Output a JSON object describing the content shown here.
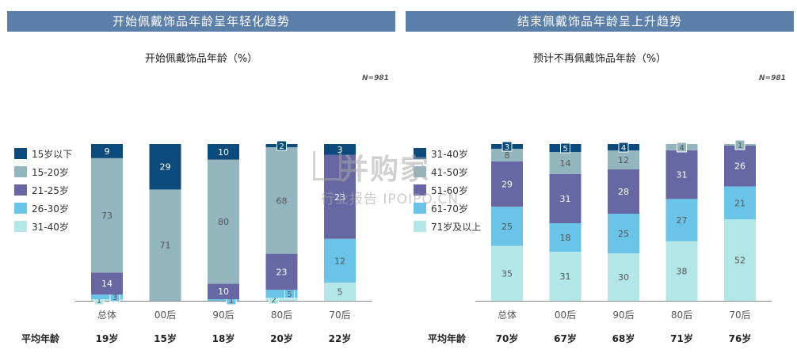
{
  "charts": [
    {
      "banner": "开始佩戴饰品年龄呈年轻化趋势",
      "subtitle": "开始佩戴饰品年龄（%）",
      "n_label": "N=981",
      "avg_label": "平均年龄",
      "avg_values": [
        "19岁",
        "15岁",
        "18岁",
        "20岁",
        "22岁"
      ]
    },
    {
      "banner": "结束佩戴饰品年龄呈上升趋势",
      "subtitle": "预计不再佩戴饰品年龄（%）",
      "n_label": "N=981",
      "avg_label": "平均年龄",
      "avg_values": [
        "70岁",
        "67岁",
        "68岁",
        "71岁",
        "76岁"
      ]
    }
  ],
  "chart_data": [
    {
      "type": "bar",
      "stacked": true,
      "title": "开始佩戴饰品年龄（%）",
      "categories": [
        "总体",
        "00后",
        "90后",
        "80后",
        "70后"
      ],
      "legend_position": "left",
      "series": [
        {
          "name": "15岁以下",
          "color": "#0b4a7a",
          "values": [
            9,
            29,
            10,
            2,
            3
          ]
        },
        {
          "name": "15-20岁",
          "color": "#93b6be",
          "values": [
            73,
            71,
            80,
            68,
            null
          ]
        },
        {
          "name": "21-25岁",
          "color": "#6667a3",
          "values": [
            14,
            null,
            10,
            23,
            23
          ]
        },
        {
          "name": "26-30岁",
          "color": "#6ac4e8",
          "values": [
            3,
            null,
            1,
            5,
            12
          ]
        },
        {
          "name": "31-40岁",
          "color": "#b3e6e6",
          "values": [
            1,
            null,
            null,
            2,
            5
          ]
        }
      ]
    },
    {
      "type": "bar",
      "stacked": true,
      "title": "预计不再佩戴饰品年龄（%）",
      "categories": [
        "总体",
        "00后",
        "90后",
        "80后",
        "70后"
      ],
      "legend_position": "left",
      "series": [
        {
          "name": "31-40岁",
          "color": "#0b4a7a",
          "values": [
            3,
            5,
            4,
            null,
            null
          ]
        },
        {
          "name": "41-50岁",
          "color": "#93b6be",
          "values": [
            8,
            14,
            12,
            4,
            1
          ]
        },
        {
          "name": "51-60岁",
          "color": "#6667a3",
          "values": [
            29,
            31,
            28,
            31,
            26
          ]
        },
        {
          "name": "61-70岁",
          "color": "#6ac4e8",
          "values": [
            25,
            18,
            25,
            27,
            21
          ]
        },
        {
          "name": "71岁及以上",
          "color": "#b3e6e6",
          "values": [
            35,
            31,
            30,
            38,
            52
          ]
        }
      ]
    }
  ]
}
